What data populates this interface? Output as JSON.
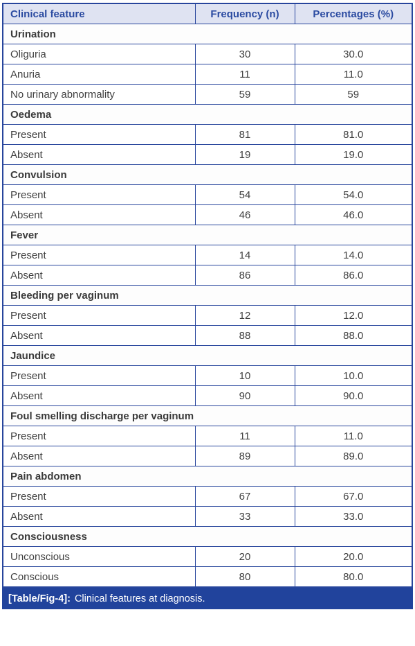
{
  "colors": {
    "border": "#27459c",
    "header_bg": "#dfe3f2",
    "header_text": "#2b4ba1",
    "caption_bg": "#21439c",
    "body_text": "#3f3f3f"
  },
  "table": {
    "headers": [
      "Clinical feature",
      "Frequency (n)",
      "Percentages (%)"
    ],
    "sections": [
      {
        "name": "Urination",
        "rows": [
          {
            "label": "Oliguria",
            "n": "30",
            "pct": "30.0"
          },
          {
            "label": "Anuria",
            "n": "11",
            "pct": "11.0"
          },
          {
            "label": "No urinary abnormality",
            "n": "59",
            "pct": "59"
          }
        ]
      },
      {
        "name": "Oedema",
        "rows": [
          {
            "label": "Present",
            "n": "81",
            "pct": "81.0"
          },
          {
            "label": "Absent",
            "n": "19",
            "pct": "19.0"
          }
        ]
      },
      {
        "name": "Convulsion",
        "rows": [
          {
            "label": "Present",
            "n": "54",
            "pct": "54.0"
          },
          {
            "label": "Absent",
            "n": "46",
            "pct": "46.0"
          }
        ]
      },
      {
        "name": "Fever",
        "rows": [
          {
            "label": "Present",
            "n": "14",
            "pct": "14.0"
          },
          {
            "label": "Absent",
            "n": "86",
            "pct": "86.0"
          }
        ]
      },
      {
        "name": "Bleeding per vaginum",
        "rows": [
          {
            "label": "Present",
            "n": "12",
            "pct": "12.0"
          },
          {
            "label": "Absent",
            "n": "88",
            "pct": "88.0"
          }
        ]
      },
      {
        "name": "Jaundice",
        "rows": [
          {
            "label": "Present",
            "n": "10",
            "pct": "10.0"
          },
          {
            "label": "Absent",
            "n": "90",
            "pct": "90.0"
          }
        ]
      },
      {
        "name": "Foul smelling discharge per vaginum",
        "rows": [
          {
            "label": "Present",
            "n": "11",
            "pct": "11.0"
          },
          {
            "label": "Absent",
            "n": "89",
            "pct": "89.0"
          }
        ]
      },
      {
        "name": "Pain abdomen",
        "rows": [
          {
            "label": "Present",
            "n": "67",
            "pct": "67.0"
          },
          {
            "label": "Absent",
            "n": "33",
            "pct": "33.0"
          }
        ]
      },
      {
        "name": "Consciousness",
        "rows": [
          {
            "label": "Unconscious",
            "n": "20",
            "pct": "20.0"
          },
          {
            "label": "Conscious",
            "n": "80",
            "pct": "80.0"
          }
        ]
      }
    ]
  },
  "caption": {
    "tag": "[Table/Fig-4]:",
    "text": "Clinical features at diagnosis."
  }
}
